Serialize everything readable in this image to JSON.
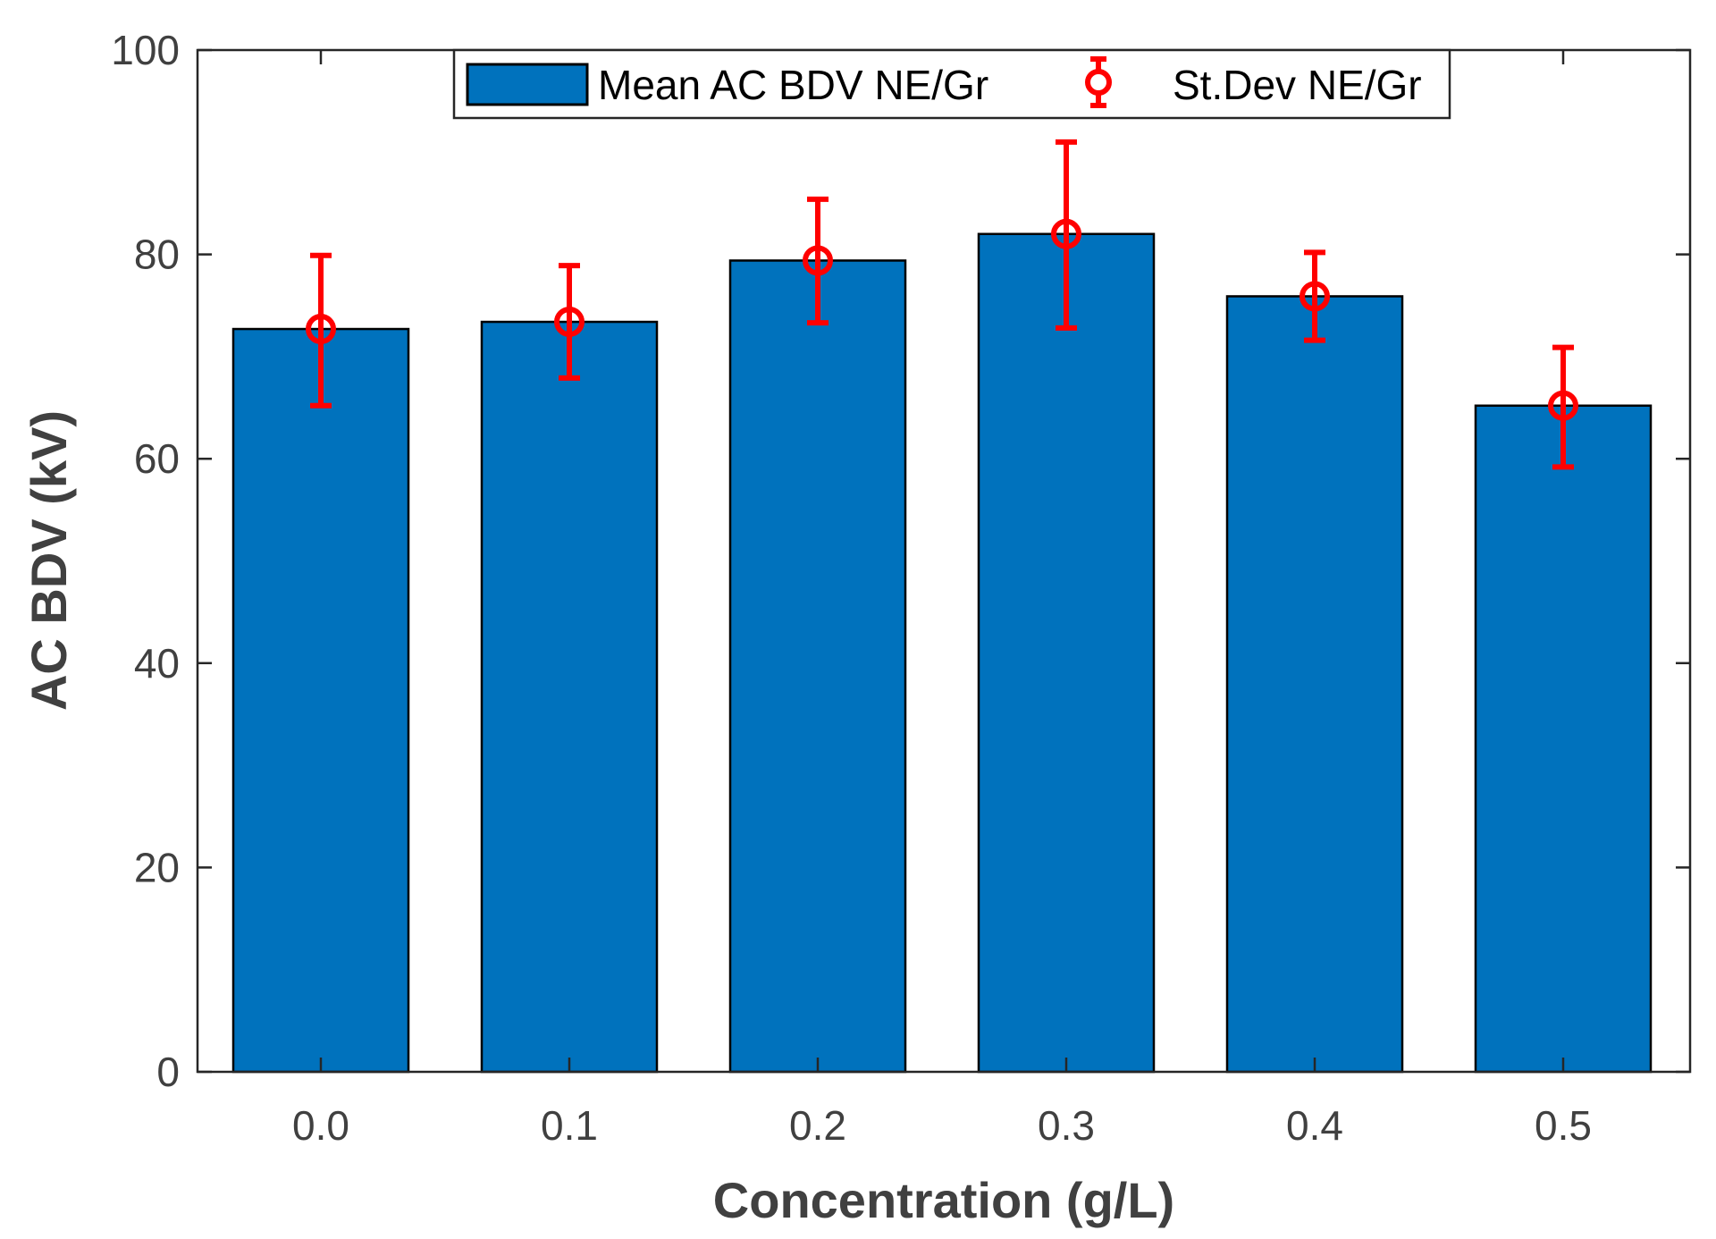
{
  "chart_data": {
    "type": "bar",
    "title": "",
    "xlabel": "Concentration (g/L)",
    "ylabel": "AC BDV (kV)",
    "categories": [
      "0.0",
      "0.1",
      "0.2",
      "0.3",
      "0.4",
      "0.5"
    ],
    "ylim": [
      0,
      100
    ],
    "yticks": [
      "0",
      "20",
      "40",
      "60",
      "80",
      "100"
    ],
    "grid": false,
    "legend_position": "top-center",
    "series": [
      {
        "name": "Mean AC BDV NE/Gr",
        "kind": "bar",
        "color": "#0072BD",
        "values": [
          72.7,
          73.4,
          79.4,
          82.0,
          75.9,
          65.2
        ]
      },
      {
        "name": "St.Dev NE/Gr",
        "kind": "errorbar",
        "color": "#FF0000",
        "values": [
          72.7,
          73.4,
          79.4,
          82.0,
          75.9,
          65.2
        ],
        "lower": [
          65.2,
          67.9,
          73.3,
          72.8,
          71.6,
          59.2
        ],
        "upper": [
          79.9,
          78.9,
          85.4,
          91.0,
          80.2,
          70.9
        ]
      }
    ]
  }
}
